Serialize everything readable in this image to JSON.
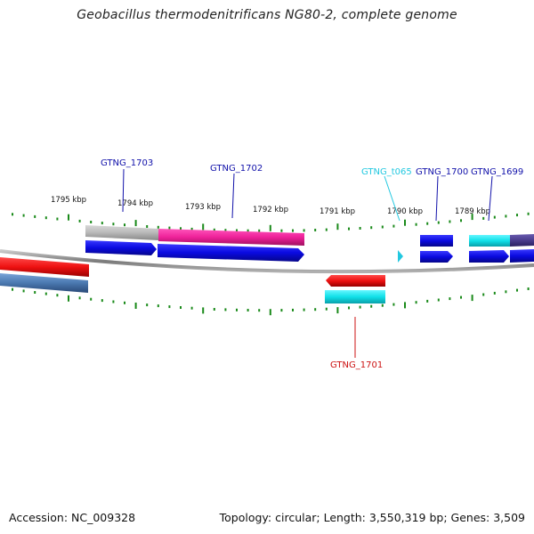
{
  "title": "Geobacillus thermodenitrificans NG80-2, complete genome",
  "footer": {
    "accession": "Accession: NC_009328",
    "summary": "Topology: circular; Length: 3,550,319 bp; Genes: 3,509"
  },
  "colors": {
    "backbone": "#8a8a8a",
    "tick": "#1a8a1a",
    "cds_blue": "#0a0ae0",
    "red": "#ee1111",
    "magenta": "#ee2299",
    "gray": "#b8b8b8",
    "cyan": "#10e0e8",
    "steel": "#4a78b0",
    "purple": "#4a3c8c",
    "trna": "#22c8e0"
  },
  "scale": {
    "labels": [
      {
        "text": "1795 kbp"
      },
      {
        "text": "1794 kbp"
      },
      {
        "text": "1793 kbp"
      },
      {
        "text": "1792 kbp"
      },
      {
        "text": "1791 kbp"
      },
      {
        "text": "1790 kbp"
      },
      {
        "text": "1789 kbp"
      }
    ]
  },
  "genes": [
    {
      "label": "GTNG_1703",
      "color": "#1111aa"
    },
    {
      "label": "GTNG_1702",
      "color": "#1111aa"
    },
    {
      "label": "GTNG_t065",
      "color": "#22c8e0"
    },
    {
      "label": "GTNG_1700",
      "color": "#1111aa"
    },
    {
      "label": "GTNG_1699",
      "color": "#1111aa"
    },
    {
      "label": "GTNG_1701",
      "color": "#cc1111"
    }
  ]
}
